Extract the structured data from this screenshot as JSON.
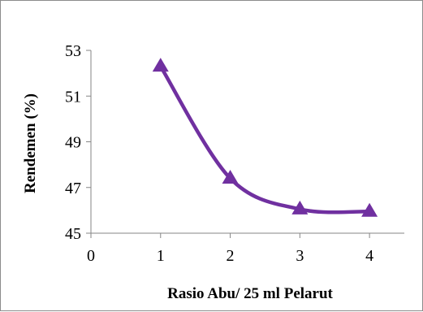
{
  "chart_data": {
    "type": "line",
    "title": "",
    "xlabel": "Rasio Abu/ 25 ml Pelarut",
    "ylabel": "Rendemen (%)",
    "x_ticks": [
      "0",
      "1",
      "2",
      "3",
      "4"
    ],
    "y_ticks": [
      "45",
      "47",
      "49",
      "51",
      "53"
    ],
    "xlim": [
      0,
      4.5
    ],
    "ylim": [
      45,
      53
    ],
    "grid": false,
    "legend": "none",
    "marker": "triangle",
    "smoothed": true,
    "series": [
      {
        "x": [
          1,
          2,
          3,
          4
        ],
        "values": [
          52.3,
          47.4,
          46.05,
          45.95
        ],
        "color": "#7030a0"
      }
    ]
  }
}
